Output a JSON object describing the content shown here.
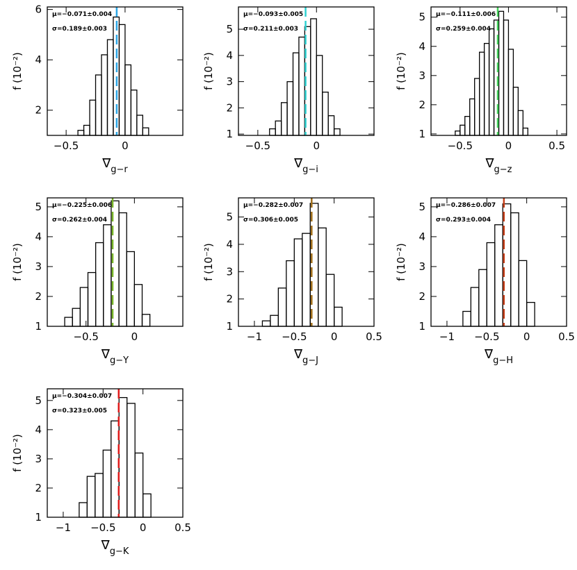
{
  "chart_data": [
    {
      "type": "histogram",
      "xlabel_symbol": "∇",
      "xlabel_subscript": "g−r",
      "ylabel": "f (10⁻²)",
      "bins": [
        -0.4,
        -0.35,
        -0.3,
        -0.25,
        -0.2,
        -0.15,
        -0.1,
        -0.05,
        0,
        0.05,
        0.1,
        0.15,
        0.2
      ],
      "values": [
        1.2,
        1.4,
        2.4,
        3.4,
        4.2,
        4.8,
        5.7,
        5.4,
        3.8,
        2.8,
        1.8,
        1.3
      ],
      "xlim": [
        -0.66,
        0.49
      ],
      "ylim": [
        1,
        6.1
      ],
      "xticks": [
        -0.5,
        0
      ],
      "yticks": [
        2,
        4,
        6
      ],
      "mean": -0.071,
      "color": "#2aa6e6",
      "annotations": [
        "μ=−0.071±0.004",
        "σ=0.189±0.003"
      ]
    },
    {
      "type": "histogram",
      "xlabel_symbol": "∇",
      "xlabel_subscript": "g−i",
      "ylabel": "f (10⁻²)",
      "bins": [
        -0.4,
        -0.35,
        -0.3,
        -0.25,
        -0.2,
        -0.15,
        -0.1,
        -0.05,
        0,
        0.05,
        0.1,
        0.15,
        0.2
      ],
      "values": [
        1.2,
        1.5,
        2.2,
        3.0,
        4.1,
        4.7,
        5.1,
        5.4,
        4.0,
        2.6,
        1.7,
        1.2
      ],
      "xlim": [
        -0.665,
        0.49
      ],
      "ylim": [
        0.95,
        5.85
      ],
      "xticks": [
        -0.5,
        0
      ],
      "yticks": [
        1,
        2,
        3,
        4,
        5
      ],
      "mean": -0.093,
      "color": "#2ed2d2",
      "annotations": [
        "μ=−0.093±0.005",
        "σ=0.211±0.003"
      ]
    },
    {
      "type": "histogram",
      "xlabel_symbol": "∇",
      "xlabel_subscript": "g−z",
      "ylabel": "f (10⁻²)",
      "bins": [
        -0.55,
        -0.5,
        -0.45,
        -0.4,
        -0.35,
        -0.3,
        -0.25,
        -0.2,
        -0.15,
        -0.1,
        -0.05,
        0,
        0.05,
        0.1,
        0.15,
        0.2
      ],
      "values": [
        1.1,
        1.3,
        1.6,
        2.2,
        2.9,
        3.8,
        4.1,
        4.6,
        4.9,
        5.2,
        4.9,
        3.9,
        2.6,
        1.8,
        1.2
      ],
      "xlim": [
        -0.8,
        0.6
      ],
      "ylim": [
        0.95,
        5.35
      ],
      "xticks": [
        -0.5,
        0,
        0.5
      ],
      "yticks": [
        1,
        2,
        3,
        4,
        5
      ],
      "mean": -0.111,
      "color": "#44d05a",
      "annotations": [
        "μ=−0.111±0.006",
        "σ=0.259±0.004"
      ]
    },
    {
      "type": "histogram",
      "xlabel_symbol": "∇",
      "xlabel_subscript": "g−Y",
      "ylabel": "f (10⁻²)",
      "bins": [
        -0.72,
        -0.64,
        -0.56,
        -0.48,
        -0.4,
        -0.32,
        -0.24,
        -0.16,
        -0.08,
        0,
        0.08,
        0.16
      ],
      "values": [
        1.3,
        1.6,
        2.3,
        2.8,
        3.8,
        4.4,
        5.2,
        4.8,
        3.5,
        2.4,
        1.4
      ],
      "xlim": [
        -0.9,
        0.5
      ],
      "ylim": [
        1,
        5.3
      ],
      "xticks": [
        -0.5,
        0
      ],
      "yticks": [
        1,
        2,
        3,
        4,
        5
      ],
      "mean": -0.225,
      "color": "#78b428",
      "annotations": [
        "μ=−0.225±0.006",
        "σ=0.262±0.004"
      ]
    },
    {
      "type": "histogram",
      "xlabel_symbol": "∇",
      "xlabel_subscript": "g−J",
      "ylabel": "f (10⁻²)",
      "bins": [
        -0.9,
        -0.8,
        -0.7,
        -0.6,
        -0.5,
        -0.4,
        -0.3,
        -0.2,
        -0.1,
        0,
        0.1
      ],
      "values": [
        1.2,
        1.4,
        2.4,
        3.4,
        4.2,
        4.4,
        5.5,
        4.6,
        2.9,
        1.7
      ],
      "xlim": [
        -1.2,
        0.5
      ],
      "ylim": [
        1,
        5.7
      ],
      "xticks": [
        -1,
        -0.5,
        0,
        0.5
      ],
      "yticks": [
        1,
        2,
        3,
        4,
        5
      ],
      "mean": -0.282,
      "color": "#a06e1a",
      "annotations": [
        "μ=−0.282±0.007",
        "σ=0.306±0.005"
      ]
    },
    {
      "type": "histogram",
      "xlabel_symbol": "∇",
      "xlabel_subscript": "g−H",
      "ylabel": "f (10⁻²)",
      "bins": [
        -0.8,
        -0.7,
        -0.6,
        -0.5,
        -0.4,
        -0.3,
        -0.2,
        -0.1,
        0,
        0.1
      ],
      "values": [
        1.5,
        2.3,
        2.9,
        3.8,
        4.4,
        5.1,
        4.8,
        3.2,
        1.8
      ],
      "xlim": [
        -1.2,
        0.5
      ],
      "ylim": [
        1,
        5.3
      ],
      "xticks": [
        -1,
        -0.5,
        0,
        0.5
      ],
      "yticks": [
        1,
        2,
        3,
        4,
        5
      ],
      "mean": -0.286,
      "color": "#c8401a",
      "annotations": [
        "μ=−0.286±0.007",
        "σ=0.293±0.004"
      ]
    },
    {
      "type": "histogram",
      "xlabel_symbol": "∇",
      "xlabel_subscript": "g−K",
      "ylabel": "f (10⁻²)",
      "bins": [
        -0.8,
        -0.7,
        -0.6,
        -0.5,
        -0.4,
        -0.3,
        -0.2,
        -0.1,
        0,
        0.1
      ],
      "values": [
        1.5,
        2.4,
        2.5,
        3.3,
        4.3,
        5.1,
        4.9,
        3.2,
        1.8
      ],
      "xlim": [
        -1.2,
        0.5
      ],
      "ylim": [
        1,
        5.4
      ],
      "xticks": [
        -1,
        -0.5,
        0,
        0.5
      ],
      "yticks": [
        1,
        2,
        3,
        4,
        5
      ],
      "mean": -0.304,
      "color": "#e01a1a",
      "annotations": [
        "μ=−0.304±0.007",
        "σ=0.323±0.005"
      ]
    }
  ]
}
